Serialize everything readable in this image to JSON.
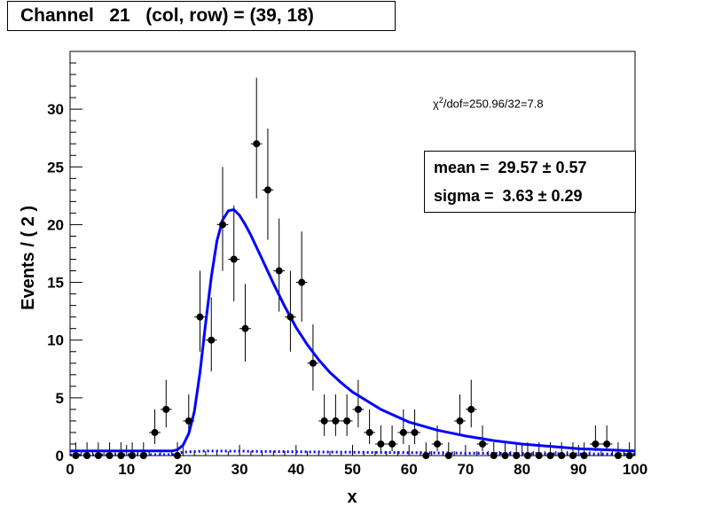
{
  "title": "Channel   21   (col, row) = (39, 18)",
  "chi2_label": "/dof=250.96/32=7.8",
  "stats": {
    "mean": "mean =  29.57 ± 0.57",
    "sigma": "sigma =  3.63 ± 0.29"
  },
  "chart_data": {
    "type": "scatter",
    "xlabel": "x",
    "ylabel": "Events / ( 2 )",
    "xlim": [
      0,
      100
    ],
    "ylim": [
      0,
      35
    ],
    "x_ticks": [
      0,
      10,
      20,
      30,
      40,
      50,
      60,
      70,
      80,
      90,
      100
    ],
    "y_ticks": [
      0,
      5,
      10,
      15,
      20,
      25,
      30
    ],
    "bin_width": 2,
    "points": {
      "x": [
        1,
        3,
        5,
        7,
        9,
        11,
        13,
        15,
        17,
        19,
        21,
        23,
        25,
        27,
        29,
        31,
        33,
        35,
        37,
        39,
        41,
        43,
        45,
        47,
        49,
        51,
        53,
        55,
        57,
        59,
        61,
        63,
        65,
        67,
        69,
        71,
        73,
        75,
        77,
        79,
        81,
        83,
        85,
        87,
        89,
        91,
        93,
        95,
        97,
        99
      ],
      "y": [
        0,
        0,
        0,
        0,
        0,
        0,
        0,
        2,
        4,
        0,
        3,
        12,
        10,
        20,
        17,
        11,
        27,
        23,
        16,
        12,
        15,
        8,
        3,
        3,
        3,
        4,
        2,
        1,
        1,
        2,
        2,
        0,
        1,
        0,
        3,
        4,
        1,
        0,
        0,
        0,
        0,
        0,
        0,
        0,
        0,
        0,
        1,
        1,
        0,
        0
      ]
    },
    "fit_curve": {
      "x": [
        0,
        18,
        19,
        20,
        21,
        22,
        23,
        24,
        25,
        26,
        27,
        28,
        29,
        30,
        31,
        32,
        34,
        36,
        38,
        40,
        42,
        44,
        46,
        48,
        50,
        55,
        60,
        65,
        70,
        75,
        80,
        85,
        90,
        95,
        100
      ],
      "y": [
        0.4,
        0.4,
        0.5,
        0.9,
        1.9,
        3.8,
        7.2,
        11.5,
        15.5,
        18.6,
        20.4,
        21.2,
        21.3,
        20.8,
        20.0,
        19.1,
        17.0,
        14.9,
        12.9,
        11.1,
        9.6,
        8.3,
        7.2,
        6.3,
        5.5,
        4.0,
        2.9,
        2.2,
        1.7,
        1.3,
        1.0,
        0.8,
        0.6,
        0.5,
        0.4
      ]
    },
    "background_curve": {
      "x": [
        0,
        18,
        20,
        24,
        30,
        40,
        60,
        80,
        100
      ],
      "y": [
        0.05,
        0.08,
        0.3,
        0.4,
        0.38,
        0.33,
        0.25,
        0.18,
        0.12
      ]
    },
    "colors": {
      "fit": "#0000ff",
      "points": "#000000"
    }
  }
}
